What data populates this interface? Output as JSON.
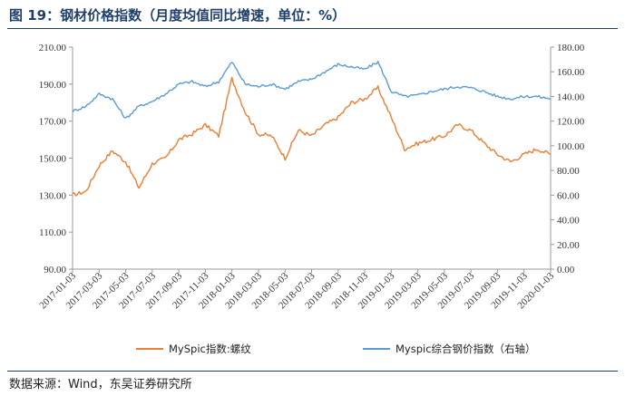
{
  "header": {
    "title": "图 19：钢材价格指数（月度均值同比增速，单位：%）"
  },
  "footer": {
    "source": "数据来源：Wind，东吴证券研究所"
  },
  "colors": {
    "rebar": "#ED7D31",
    "composite": "#5B9BD5",
    "axis": "#999999"
  },
  "chart_data": {
    "type": "line",
    "title": "钢材价格指数",
    "x": [
      "2017-01-03",
      "2017-02-03",
      "2017-03-03",
      "2017-04-03",
      "2017-05-03",
      "2017-06-03",
      "2017-07-03",
      "2017-08-03",
      "2017-09-03",
      "2017-10-03",
      "2017-11-03",
      "2017-12-03",
      "2018-01-03",
      "2018-02-03",
      "2018-03-03",
      "2018-04-03",
      "2018-05-03",
      "2018-06-03",
      "2018-07-03",
      "2018-08-03",
      "2018-09-03",
      "2018-10-03",
      "2018-11-03",
      "2018-12-03",
      "2019-01-03",
      "2019-02-03",
      "2019-03-03",
      "2019-04-03",
      "2019-05-03",
      "2019-06-03",
      "2019-07-03",
      "2019-08-03",
      "2019-09-03",
      "2019-10-03",
      "2019-11-03",
      "2019-12-03",
      "2020-01-03"
    ],
    "x_tick_labels": [
      "2017-01-03",
      "2017-03-03",
      "2017-05-03",
      "2017-07-03",
      "2017-09-03",
      "2017-11-03",
      "2018-01-03",
      "2018-03-03",
      "2018-05-03",
      "2018-07-03",
      "2018-09-03",
      "2018-11-03",
      "2019-01-03",
      "2019-03-03",
      "2019-05-03",
      "2019-07-03",
      "2019-09-03",
      "2019-11-03",
      "2020-01-03"
    ],
    "y_left": {
      "ticks": [
        "90.00",
        "110.00",
        "130.00",
        "150.00",
        "170.00",
        "190.00",
        "210.00"
      ],
      "ylim": [
        90,
        210
      ]
    },
    "y_right": {
      "ticks": [
        "0.00",
        "20.00",
        "40.00",
        "60.00",
        "80.00",
        "100.00",
        "120.00",
        "140.00",
        "160.00",
        "180.00"
      ],
      "ylim": [
        0,
        180
      ]
    },
    "series": [
      {
        "name": "MySpic指数:螺纹",
        "axis": "left",
        "values": [
          130,
          132,
          146,
          154,
          148,
          134,
          147,
          150,
          160,
          163,
          168,
          162,
          193,
          175,
          163,
          162,
          150,
          165,
          162,
          168,
          172,
          180,
          182,
          188,
          172,
          155,
          158,
          160,
          162,
          168,
          165,
          158,
          152,
          148,
          152,
          155,
          152
        ]
      },
      {
        "name": "Myspic综合钢价指数（右轴）",
        "axis": "right",
        "values": [
          128,
          132,
          142,
          138,
          122,
          132,
          136,
          142,
          150,
          152,
          148,
          152,
          168,
          150,
          148,
          150,
          146,
          152,
          154,
          160,
          166,
          164,
          162,
          168,
          144,
          140,
          141,
          144,
          146,
          148,
          147,
          144,
          140,
          138,
          140,
          140,
          138
        ]
      }
    ],
    "legend": [
      "MySpic指数:螺纹",
      "Myspic综合钢价指数（右轴）"
    ],
    "legend_position": "bottom",
    "grid": false
  }
}
